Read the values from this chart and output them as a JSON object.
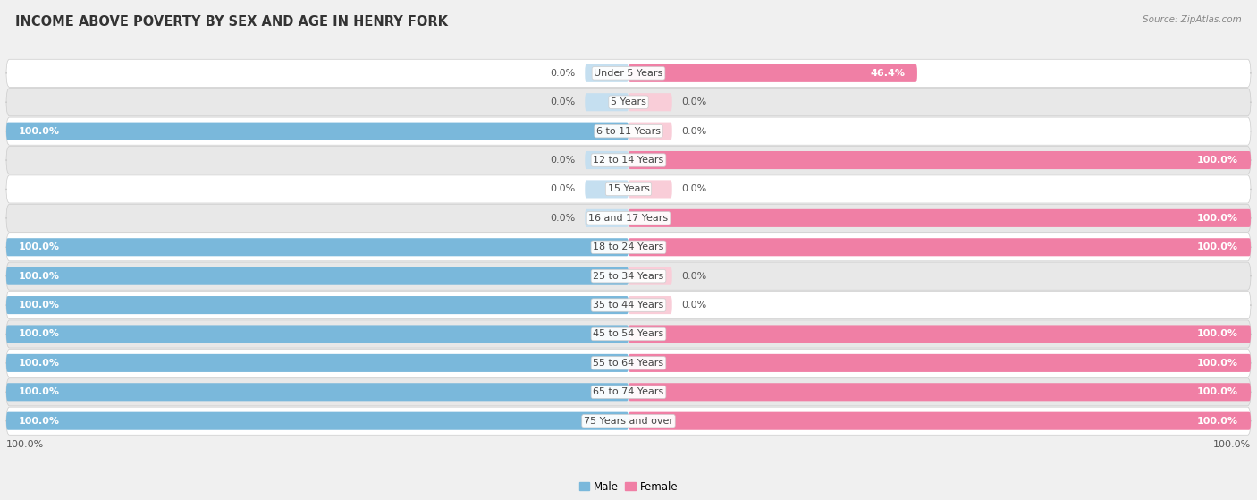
{
  "title": "INCOME ABOVE POVERTY BY SEX AND AGE IN HENRY FORK",
  "source": "Source: ZipAtlas.com",
  "categories": [
    "Under 5 Years",
    "5 Years",
    "6 to 11 Years",
    "12 to 14 Years",
    "15 Years",
    "16 and 17 Years",
    "18 to 24 Years",
    "25 to 34 Years",
    "35 to 44 Years",
    "45 to 54 Years",
    "55 to 64 Years",
    "65 to 74 Years",
    "75 Years and over"
  ],
  "male": [
    0.0,
    0.0,
    100.0,
    0.0,
    0.0,
    0.0,
    100.0,
    100.0,
    100.0,
    100.0,
    100.0,
    100.0,
    100.0
  ],
  "female": [
    46.4,
    0.0,
    0.0,
    100.0,
    0.0,
    100.0,
    100.0,
    0.0,
    0.0,
    100.0,
    100.0,
    100.0,
    100.0
  ],
  "male_color": "#7ab8db",
  "female_color": "#f07fa5",
  "male_stub_color": "#c5dff0",
  "female_stub_color": "#f9cdd8",
  "bg_color": "#f0f0f0",
  "row_bg_white": "#ffffff",
  "row_bg_gray": "#e8e8e8",
  "row_border": "#cccccc",
  "bar_height": 0.62,
  "stub_size": 7.0,
  "label_fontsize": 8.0,
  "title_fontsize": 10.5,
  "source_fontsize": 7.5,
  "value_color": "#555555",
  "value_color_white": "#ffffff",
  "cat_label_color": "#444444"
}
